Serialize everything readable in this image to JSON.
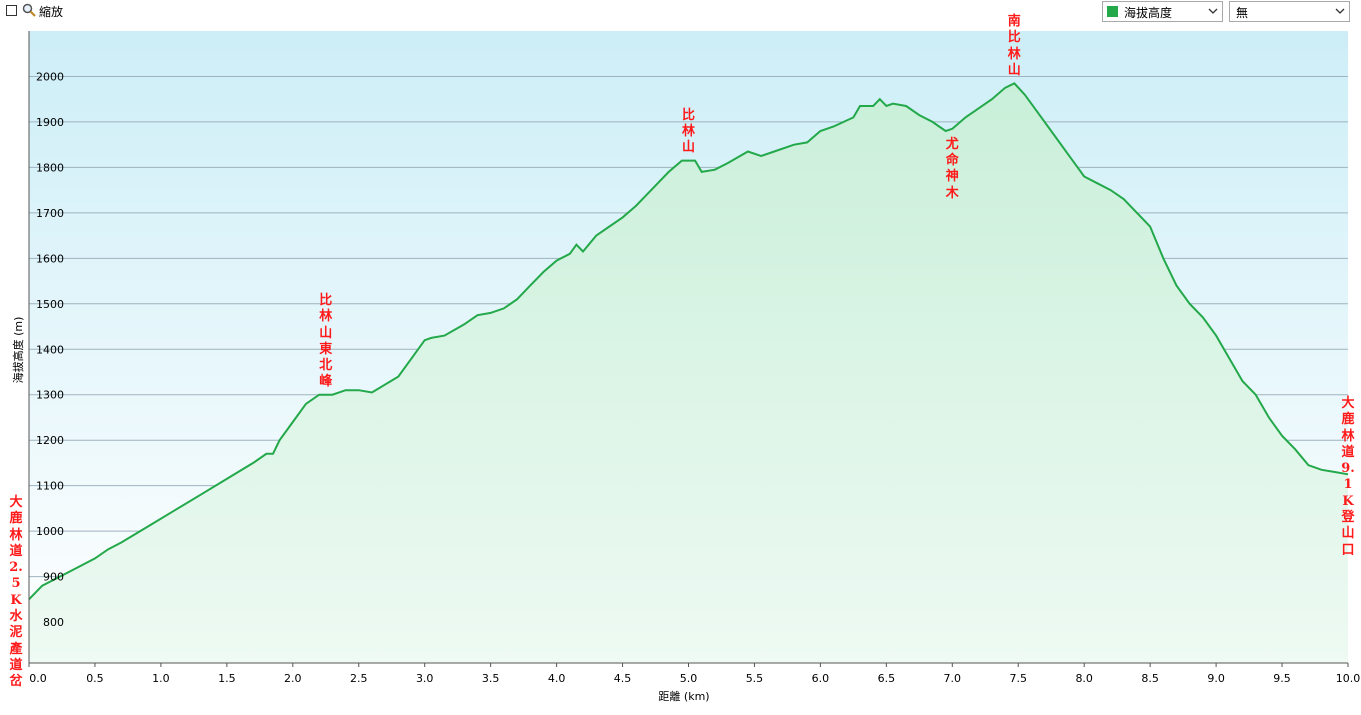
{
  "toolbar": {
    "zoom_label": "縮放",
    "series_select": {
      "value": "海拔高度",
      "color": "#23a84a"
    },
    "second_select": {
      "value": "無"
    }
  },
  "chart_data": {
    "type": "area",
    "xlabel": "距離 (km)",
    "ylabel": "海拔高度 (m)",
    "xlim": [
      0,
      10.0
    ],
    "ylim": [
      710,
      2100
    ],
    "x_ticks": [
      0.0,
      0.5,
      1.0,
      1.5,
      2.0,
      2.5,
      3.0,
      3.5,
      4.0,
      4.5,
      5.0,
      5.5,
      6.0,
      6.5,
      7.0,
      7.5,
      8.0,
      8.5,
      9.0,
      9.5,
      10.0
    ],
    "y_ticks": [
      800,
      900,
      1000,
      1100,
      1200,
      1300,
      1400,
      1500,
      1600,
      1700,
      1800,
      1900,
      2000
    ],
    "grid": true,
    "series": [
      {
        "line_color": "#23a84a",
        "x": [
          0,
          0.1,
          0.3,
          0.5,
          0.6,
          0.7,
          0.9,
          1.1,
          1.3,
          1.5,
          1.7,
          1.8,
          1.85,
          1.9,
          2.0,
          2.1,
          2.2,
          2.3,
          2.4,
          2.5,
          2.6,
          2.8,
          2.9,
          3.0,
          3.05,
          3.15,
          3.3,
          3.4,
          3.5,
          3.6,
          3.7,
          3.8,
          3.9,
          4.0,
          4.1,
          4.15,
          4.2,
          4.3,
          4.4,
          4.5,
          4.6,
          4.7,
          4.85,
          4.95,
          5.05,
          5.1,
          5.2,
          5.3,
          5.45,
          5.55,
          5.65,
          5.8,
          5.9,
          6.0,
          6.1,
          6.25,
          6.3,
          6.4,
          6.45,
          6.5,
          6.55,
          6.65,
          6.75,
          6.85,
          6.9,
          6.95,
          7.0,
          7.1,
          7.2,
          7.3,
          7.4,
          7.47,
          7.55,
          7.65,
          7.75,
          7.9,
          8.0,
          8.1,
          8.2,
          8.3,
          8.4,
          8.5,
          8.6,
          8.7,
          8.8,
          8.9,
          9.0,
          9.1,
          9.2,
          9.3,
          9.4,
          9.5,
          9.6,
          9.7,
          9.8,
          9.9,
          10.0
        ],
        "y": [
          850,
          880,
          910,
          940,
          960,
          975,
          1010,
          1045,
          1080,
          1115,
          1150,
          1170,
          1170,
          1200,
          1240,
          1280,
          1300,
          1300,
          1310,
          1310,
          1305,
          1340,
          1380,
          1420,
          1425,
          1430,
          1455,
          1475,
          1480,
          1490,
          1510,
          1540,
          1570,
          1595,
          1610,
          1630,
          1615,
          1650,
          1670,
          1690,
          1715,
          1745,
          1790,
          1815,
          1815,
          1790,
          1795,
          1810,
          1835,
          1825,
          1835,
          1850,
          1855,
          1880,
          1890,
          1910,
          1935,
          1935,
          1950,
          1935,
          1940,
          1935,
          1915,
          1900,
          1890,
          1880,
          1885,
          1910,
          1930,
          1950,
          1975,
          1985,
          1960,
          1920,
          1880,
          1820,
          1780,
          1765,
          1750,
          1730,
          1700,
          1670,
          1600,
          1540,
          1500,
          1470,
          1430,
          1380,
          1330,
          1300,
          1250,
          1210,
          1180,
          1145,
          1135,
          1130,
          1125
        ]
      }
    ],
    "annotations": [
      {
        "text": "大鹿林道2.5K水泥產道岔",
        "x": 0.0
      },
      {
        "text": "比林山東北峰",
        "x": 2.25
      },
      {
        "text": "比林山",
        "x": 5.0
      },
      {
        "text": "尤命神木",
        "x": 7.0
      },
      {
        "text": "南比林山",
        "x": 7.47
      },
      {
        "text": "大鹿林道9.1K登山口",
        "x": 10.0
      }
    ]
  }
}
